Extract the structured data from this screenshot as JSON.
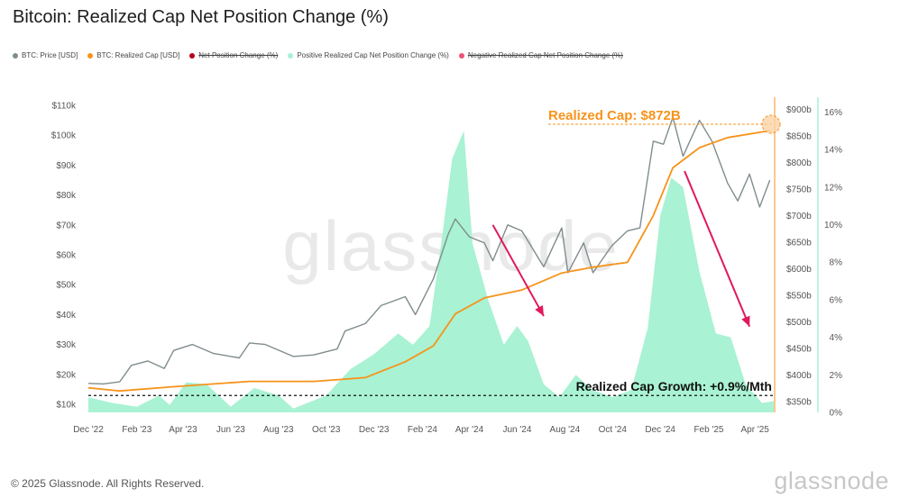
{
  "title": "Bitcoin: Realized Cap Net Position Change (%)",
  "legend": [
    {
      "name": "BTC: Price [USD]",
      "color": "#7f8c8d",
      "active": true
    },
    {
      "name": "BTC: Realized Cap [USD]",
      "color": "#f7931a",
      "active": true
    },
    {
      "name": "Net Position Change (%)",
      "color": "#b8001f",
      "active": false
    },
    {
      "name": "Positive Realized Cap Net Position Change (%)",
      "color": "#a8f0d0",
      "active": true
    },
    {
      "name": "Negative Realized Cap Net Position Change (%)",
      "color": "#f0507a",
      "active": false
    }
  ],
  "footer": {
    "copyright": "© 2025 Glassnode. All Rights Reserved.",
    "logo": "glassnode"
  },
  "watermark": "glassnode",
  "chart_data": {
    "type": "line",
    "title": "Bitcoin: Realized Cap Net Position Change (%)",
    "x_ticks": [
      "Dec '22",
      "Feb '23",
      "Apr '23",
      "Jun '23",
      "Aug '23",
      "Oct '23",
      "Dec '23",
      "Feb '24",
      "Apr '24",
      "Jun '24",
      "Aug '24",
      "Oct '24",
      "Dec '24",
      "Feb '25",
      "Apr '25"
    ],
    "y_left_ticks": [
      "$10k",
      "$20k",
      "$30k",
      "$40k",
      "$50k",
      "$60k",
      "$70k",
      "$80k",
      "$90k",
      "$100k",
      "$110k"
    ],
    "y_mid_ticks": [
      "$350b",
      "$400b",
      "$450b",
      "$500b",
      "$550b",
      "$600b",
      "$650b",
      "$700b",
      "$750b",
      "$800b",
      "$850b",
      "$900b"
    ],
    "y_right_ticks": [
      "0%",
      "2%",
      "4%",
      "6%",
      "8%",
      "10%",
      "12%",
      "14%",
      "16%"
    ],
    "y_left_range": [
      10000,
      110000
    ],
    "y_mid_range": [
      350,
      900
    ],
    "y_right_range": [
      0,
      16
    ],
    "x_range": [
      "2022-12-01",
      "2025-04-25"
    ],
    "grid": false,
    "series": [
      {
        "name": "BTC: Price [USD]",
        "axis": "left",
        "x": [
          "2022-12-01",
          "2022-12-20",
          "2023-01-10",
          "2023-01-25",
          "2023-02-15",
          "2023-03-08",
          "2023-03-20",
          "2023-04-13",
          "2023-05-10",
          "2023-06-12",
          "2023-06-25",
          "2023-07-15",
          "2023-08-20",
          "2023-09-15",
          "2023-10-15",
          "2023-10-25",
          "2023-11-20",
          "2023-12-10",
          "2024-01-10",
          "2024-01-23",
          "2024-02-15",
          "2024-03-05",
          "2024-03-14",
          "2024-04-01",
          "2024-04-20",
          "2024-05-01",
          "2024-05-20",
          "2024-06-07",
          "2024-07-05",
          "2024-07-28",
          "2024-08-05",
          "2024-08-25",
          "2024-09-06",
          "2024-09-30",
          "2024-10-20",
          "2024-11-05",
          "2024-11-22",
          "2024-12-05",
          "2024-12-17",
          "2024-12-30",
          "2025-01-20",
          "2025-02-05",
          "2025-02-25",
          "2025-03-10",
          "2025-03-25",
          "2025-04-07",
          "2025-04-20"
        ],
        "values": [
          17000,
          16800,
          17500,
          23000,
          24500,
          22000,
          28000,
          30000,
          27000,
          25500,
          30500,
          30000,
          26000,
          26500,
          28500,
          34500,
          37000,
          43000,
          46000,
          40000,
          52000,
          67000,
          72000,
          66000,
          64000,
          58000,
          70000,
          68000,
          56000,
          69000,
          54000,
          64000,
          54000,
          63000,
          68000,
          69000,
          98000,
          97000,
          106000,
          93000,
          105000,
          98000,
          84000,
          78000,
          87000,
          76000,
          85000
        ]
      },
      {
        "name": "BTC: Realized Cap [USD]",
        "axis": "mid",
        "x": [
          "2022-12-01",
          "2023-01-10",
          "2023-03-20",
          "2023-06-25",
          "2023-09-15",
          "2023-11-20",
          "2024-01-10",
          "2024-02-15",
          "2024-03-14",
          "2024-04-20",
          "2024-06-07",
          "2024-07-28",
          "2024-09-06",
          "2024-10-20",
          "2024-11-22",
          "2024-12-17",
          "2025-01-20",
          "2025-02-25",
          "2025-04-20"
        ],
        "values": [
          376,
          370,
          378,
          388,
          388,
          395,
          425,
          455,
          515,
          545,
          560,
          592,
          603,
          612,
          700,
          790,
          828,
          847,
          860
        ]
      },
      {
        "name": "Positive Realized Cap Net Position Change (%)",
        "axis": "right",
        "x": [
          "2022-12-01",
          "2023-01-01",
          "2023-02-01",
          "2023-03-01",
          "2023-03-15",
          "2023-04-05",
          "2023-05-01",
          "2023-06-01",
          "2023-07-01",
          "2023-08-01",
          "2023-08-20",
          "2023-10-01",
          "2023-11-01",
          "2023-12-01",
          "2024-01-01",
          "2024-01-20",
          "2024-02-10",
          "2024-02-25",
          "2024-03-10",
          "2024-03-25",
          "2024-04-05",
          "2024-04-25",
          "2024-05-15",
          "2024-06-01",
          "2024-06-15",
          "2024-07-05",
          "2024-07-25",
          "2024-08-15",
          "2024-09-05",
          "2024-10-01",
          "2024-10-25",
          "2024-11-15",
          "2024-12-01",
          "2024-12-15",
          "2024-12-30",
          "2025-01-20",
          "2025-02-10",
          "2025-03-01",
          "2025-03-20",
          "2025-04-10",
          "2025-04-25"
        ],
        "values": [
          0.8,
          0.5,
          0.3,
          0.9,
          0.4,
          1.6,
          1.5,
          0.3,
          1.3,
          0.9,
          0.2,
          0.9,
          2.3,
          3.1,
          4.2,
          3.6,
          4.6,
          9.0,
          13.5,
          15.0,
          9.0,
          6.0,
          3.6,
          4.6,
          3.8,
          1.5,
          0.8,
          2.0,
          1.2,
          0.8,
          1.2,
          4.5,
          10.5,
          12.5,
          12.0,
          7.5,
          4.2,
          4.0,
          1.5,
          0.5,
          0.6
        ]
      }
    ],
    "annotations": [
      {
        "text": "Realized Cap: $872B",
        "color": "#f7931a",
        "value_mid": 872
      },
      {
        "text": "Realized Cap Growth: +0.9%/Mth",
        "color": "#111111",
        "value_right": 0.9
      }
    ],
    "arrows": [
      {
        "from": [
          "2024-05-01",
          70000
        ],
        "to": [
          "2024-07-05",
          39500
        ],
        "axis": "left",
        "color": "#e0195e"
      },
      {
        "from": [
          "2025-01-01",
          88000
        ],
        "to": [
          "2025-03-25",
          36000
        ],
        "axis": "left",
        "color": "#e0195e"
      }
    ]
  }
}
